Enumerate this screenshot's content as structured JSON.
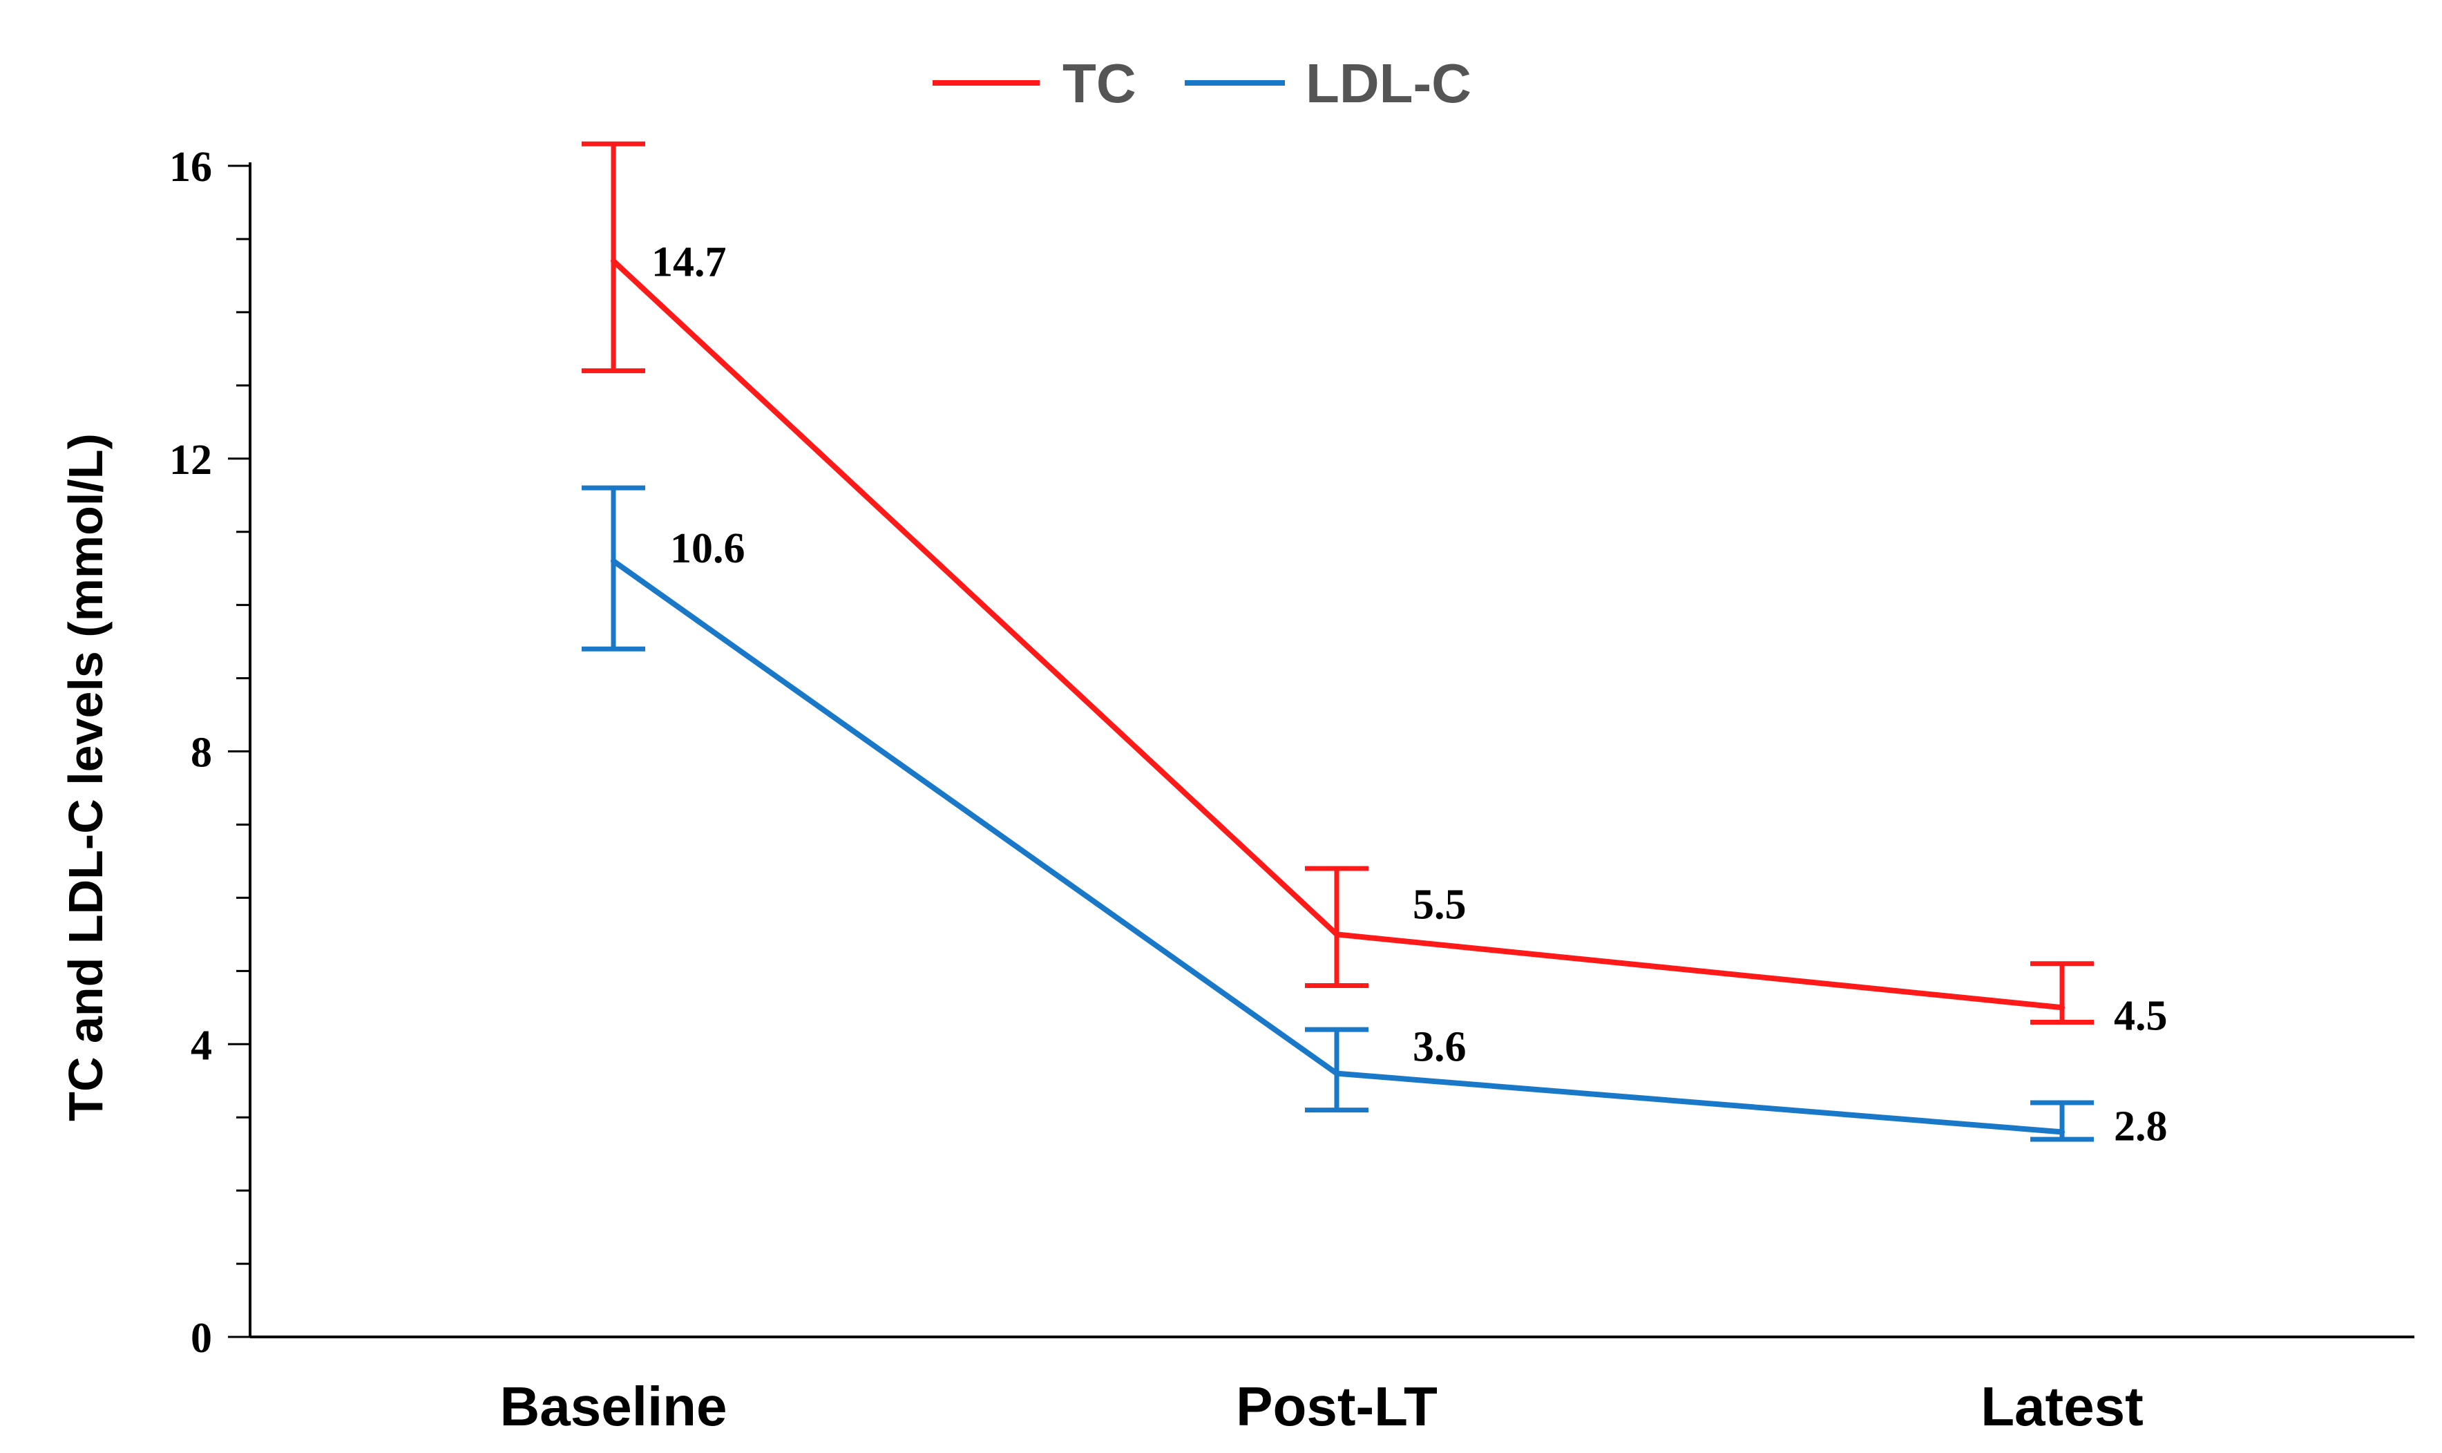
{
  "chart_data": {
    "type": "line",
    "title": "",
    "xlabel": "",
    "ylabel": "TC and LDL-C levels (mmol/L)",
    "categories": [
      "Baseline",
      "Post-LT",
      "Latest"
    ],
    "ylim": [
      0,
      16
    ],
    "yticks": [
      0,
      4,
      8,
      12,
      16
    ],
    "y_minor_step": 1,
    "grid": false,
    "legend_position": "top-center",
    "series": [
      {
        "name": "TC",
        "color": "#ff1a1a",
        "values": [
          14.7,
          5.5,
          4.5
        ],
        "err_low": [
          13.2,
          4.8,
          4.3
        ],
        "err_high": [
          16.3,
          6.4,
          5.1
        ],
        "labels": [
          "14.7",
          "5.5",
          "4.5"
        ]
      },
      {
        "name": "LDL-C",
        "color": "#1a78c8",
        "values": [
          10.6,
          3.6,
          2.8
        ],
        "err_low": [
          9.4,
          3.1,
          2.7
        ],
        "err_high": [
          11.6,
          4.2,
          3.2
        ],
        "labels": [
          "10.6",
          "3.6",
          "2.8"
        ]
      }
    ]
  }
}
